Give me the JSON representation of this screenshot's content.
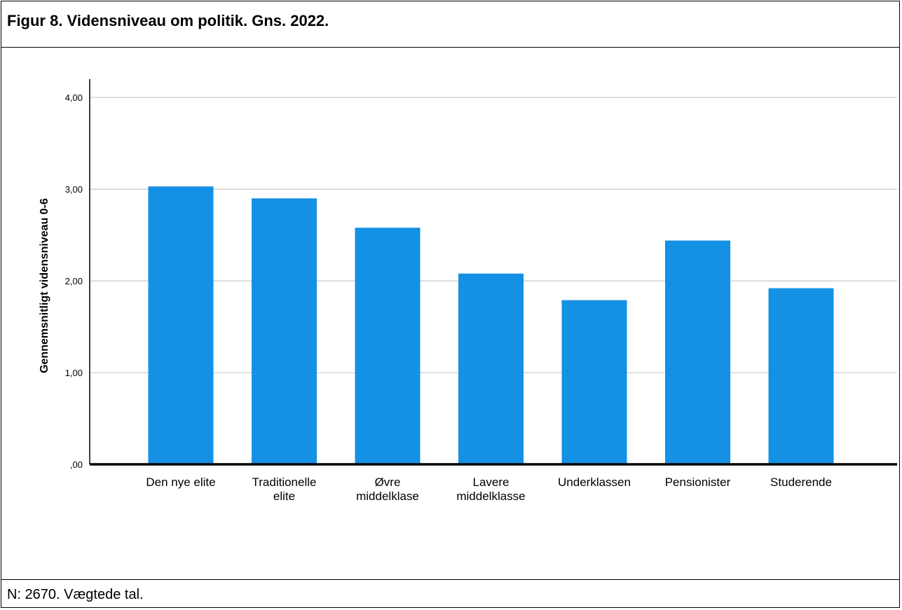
{
  "figure": {
    "title": "Figur 8. Vidensniveau om politik. Gns. 2022.",
    "note": "N: 2670. Vægtede tal."
  },
  "colors": {
    "bar": "#1490e4",
    "grid": "#c8c8c8",
    "axis": "#000000"
  },
  "chart_data": {
    "type": "bar",
    "categories": [
      "Den nye elite",
      "Traditionelle elite",
      "Øvre middelklase",
      "Lavere middelklasse",
      "Underklassen",
      "Pensionister",
      "Studerende"
    ],
    "category_lines": [
      [
        "Den nye elite"
      ],
      [
        "Traditionelle",
        "elite"
      ],
      [
        "Øvre",
        "middelklase"
      ],
      [
        "Lavere",
        "middelklasse"
      ],
      [
        "Underklassen"
      ],
      [
        "Pensionister"
      ],
      [
        "Studerende"
      ]
    ],
    "values": [
      3.03,
      2.9,
      2.58,
      2.08,
      1.79,
      2.44,
      1.92
    ],
    "ylabel": "Gennemsnitligt vidensniveau 0-6",
    "xlabel": "",
    "ylim": [
      0,
      4.2
    ],
    "yticks": [
      0,
      1,
      2,
      3,
      4
    ],
    "ytick_labels": [
      ",00",
      "1,00",
      "2,00",
      "3,00",
      "4,00"
    ],
    "grid": true
  }
}
